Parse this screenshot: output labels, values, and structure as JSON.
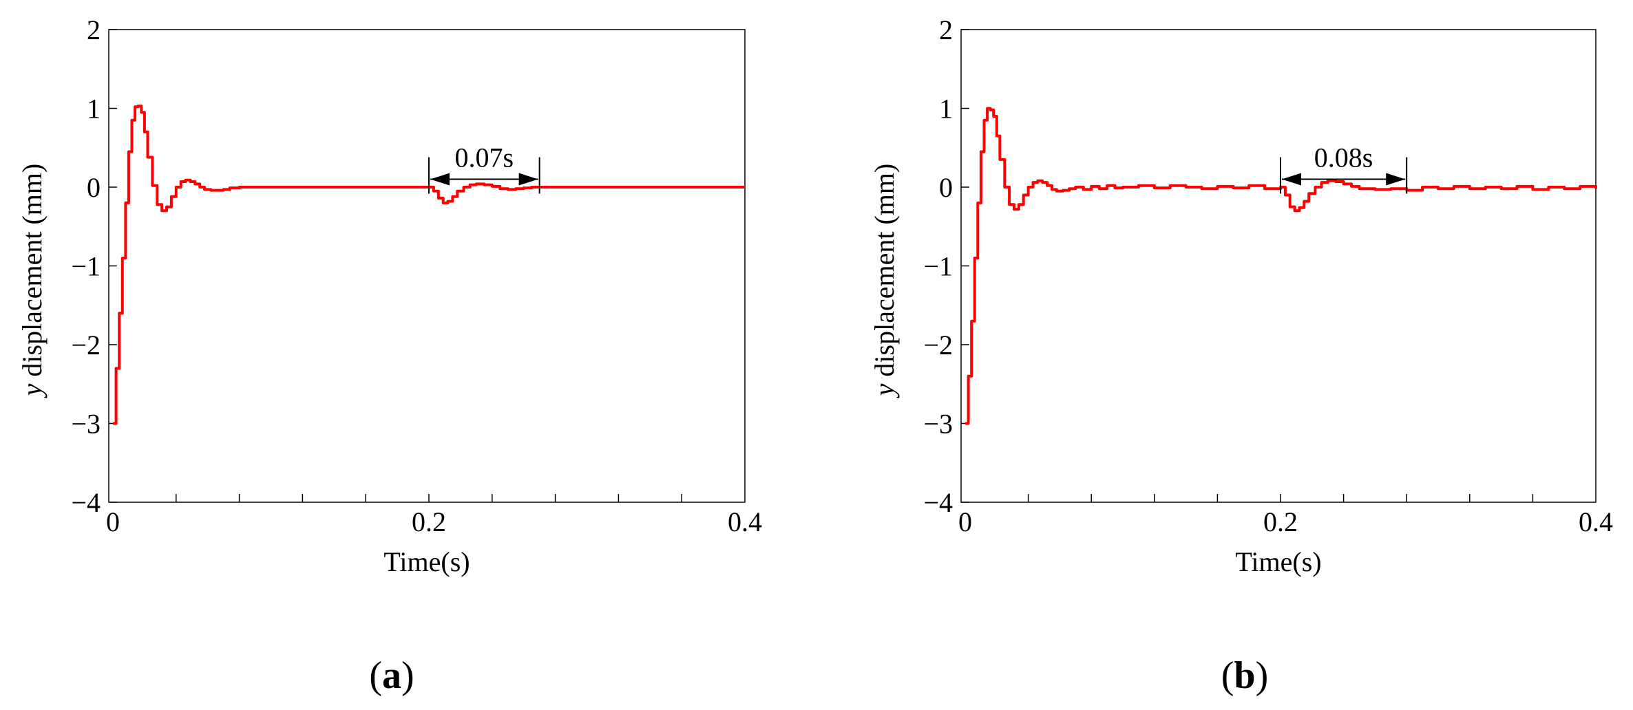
{
  "chart_data": [
    {
      "type": "line",
      "panel_label": "a",
      "xlabel": "Time(s)",
      "ylabel_italic": "y",
      "ylabel": "displacement (mm)",
      "xlim": [
        0,
        0.4
      ],
      "ylim": [
        -4,
        2
      ],
      "x_ticks": [
        0,
        0.2,
        0.4
      ],
      "x_tick_labels": [
        "0",
        "0.2",
        "0.4"
      ],
      "y_ticks": [
        2,
        1,
        0,
        -1,
        -2,
        -3,
        -4
      ],
      "y_tick_labels": [
        "2",
        "1",
        "0",
        "−1",
        "−2",
        "−3",
        "−4"
      ],
      "grid": false,
      "line_color": "#ff0000",
      "annotation": {
        "text": "0.07s",
        "x_start": 0.2,
        "x_end": 0.27,
        "y": 0.1
      },
      "series": [
        {
          "x": [
            0,
            0.002,
            0.004,
            0.006,
            0.008,
            0.01,
            0.012,
            0.014,
            0.016,
            0.018,
            0.02,
            0.022,
            0.025,
            0.028,
            0.031,
            0.034,
            0.037,
            0.04,
            0.043,
            0.046,
            0.049,
            0.052,
            0.055,
            0.058,
            0.062,
            0.066,
            0.07,
            0.074,
            0.08,
            0.1,
            0.15,
            0.2,
            0.203,
            0.206,
            0.209,
            0.212,
            0.215,
            0.218,
            0.222,
            0.226,
            0.23,
            0.235,
            0.24,
            0.245,
            0.25,
            0.255,
            0.26,
            0.265,
            0.27,
            0.3,
            0.35,
            0.4
          ],
          "y": [
            -3.0,
            -2.3,
            -1.6,
            -0.9,
            -0.2,
            0.45,
            0.85,
            1.02,
            1.03,
            0.95,
            0.7,
            0.38,
            0.02,
            -0.22,
            -0.3,
            -0.25,
            -0.12,
            0.0,
            0.07,
            0.09,
            0.07,
            0.04,
            0.0,
            -0.03,
            -0.04,
            -0.04,
            -0.03,
            -0.01,
            0.0,
            0.0,
            0.0,
            0.0,
            -0.05,
            -0.14,
            -0.2,
            -0.18,
            -0.12,
            -0.05,
            0.0,
            0.03,
            0.04,
            0.03,
            0.01,
            -0.02,
            -0.03,
            -0.02,
            -0.01,
            0.0,
            0.0,
            0.0,
            0.0,
            0.0
          ]
        }
      ]
    },
    {
      "type": "line",
      "panel_label": "b",
      "xlabel": "Time(s)",
      "ylabel_italic": "y",
      "ylabel": "displacement (mm)",
      "xlim": [
        0,
        0.4
      ],
      "ylim": [
        -4,
        2
      ],
      "x_ticks": [
        0,
        0.2,
        0.4
      ],
      "x_tick_labels": [
        "0",
        "0.2",
        "0.4"
      ],
      "y_ticks": [
        2,
        1,
        0,
        -1,
        -2,
        -3,
        -4
      ],
      "y_tick_labels": [
        "2",
        "1",
        "0",
        "−1",
        "−2",
        "−3",
        "−4"
      ],
      "grid": false,
      "line_color": "#ff0000",
      "annotation": {
        "text": "0.08s",
        "x_start": 0.2,
        "x_end": 0.28,
        "y": 0.1
      },
      "series": [
        {
          "x": [
            0,
            0.002,
            0.004,
            0.006,
            0.008,
            0.01,
            0.012,
            0.014,
            0.016,
            0.018,
            0.02,
            0.022,
            0.025,
            0.028,
            0.031,
            0.034,
            0.037,
            0.04,
            0.043,
            0.046,
            0.049,
            0.052,
            0.055,
            0.058,
            0.062,
            0.066,
            0.07,
            0.075,
            0.08,
            0.085,
            0.09,
            0.095,
            0.1,
            0.11,
            0.12,
            0.13,
            0.14,
            0.15,
            0.16,
            0.17,
            0.18,
            0.19,
            0.2,
            0.203,
            0.206,
            0.209,
            0.212,
            0.215,
            0.218,
            0.222,
            0.226,
            0.23,
            0.235,
            0.24,
            0.245,
            0.25,
            0.26,
            0.27,
            0.28,
            0.29,
            0.3,
            0.31,
            0.32,
            0.33,
            0.34,
            0.35,
            0.36,
            0.37,
            0.38,
            0.39,
            0.4
          ],
          "y": [
            -3.0,
            -2.4,
            -1.7,
            -0.9,
            -0.2,
            0.45,
            0.85,
            1.0,
            0.98,
            0.9,
            0.65,
            0.35,
            0.0,
            -0.22,
            -0.28,
            -0.22,
            -0.1,
            0.0,
            0.06,
            0.08,
            0.06,
            0.02,
            -0.03,
            -0.05,
            -0.04,
            -0.02,
            0.0,
            -0.03,
            0.01,
            -0.02,
            0.02,
            -0.01,
            0.0,
            0.02,
            -0.01,
            0.02,
            0.0,
            -0.02,
            0.01,
            -0.01,
            0.02,
            -0.02,
            0.0,
            -0.1,
            -0.25,
            -0.3,
            -0.26,
            -0.18,
            -0.08,
            0.0,
            0.06,
            0.08,
            0.07,
            0.04,
            0.01,
            -0.02,
            -0.03,
            -0.02,
            -0.04,
            0.0,
            -0.02,
            0.01,
            -0.02,
            0.0,
            -0.02,
            0.01,
            -0.03,
            0.0,
            -0.02,
            0.01,
            -0.02
          ]
        }
      ]
    }
  ]
}
